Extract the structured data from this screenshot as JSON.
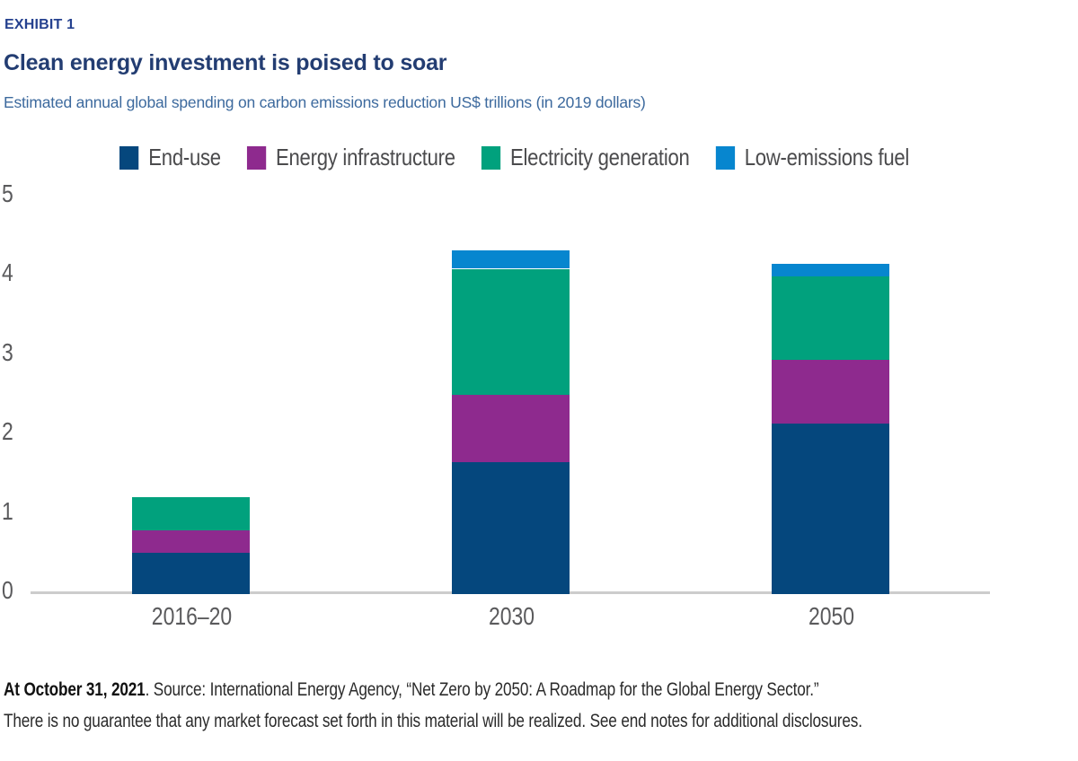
{
  "header": {
    "exhibit_label": "EXHIBIT 1",
    "title": "Clean energy investment is poised to soar",
    "subtitle": "Estimated annual global spending on carbon emissions reduction US$ trillions (in 2019 dollars)"
  },
  "chart_data": {
    "type": "bar",
    "stacked": true,
    "title": "Clean energy investment is poised to soar",
    "subtitle": "Estimated annual global spending on carbon emissions reduction US$ trillions (in 2019 dollars)",
    "categories": [
      "2016–20",
      "2030",
      "2050"
    ],
    "series": [
      {
        "name": "End-use",
        "color": "#05477d",
        "values": [
          0.52,
          1.66,
          2.15
        ]
      },
      {
        "name": "Energy infrastructure",
        "color": "#8e2a8e",
        "values": [
          0.28,
          0.86,
          0.8
        ]
      },
      {
        "name": "Electricity generation",
        "color": "#01a17d",
        "values": [
          0.42,
          1.58,
          1.05
        ]
      },
      {
        "name": "Low-emissions fuel",
        "color": "#0786cf",
        "values": [
          0.0,
          0.23,
          0.16
        ]
      }
    ],
    "totals": [
      1.22,
      4.33,
      4.16
    ],
    "xlabel": "",
    "ylabel": "US$ trillions (in 2019 dollars)",
    "ylim": [
      0,
      5
    ],
    "yticks": [
      0,
      1,
      2,
      3,
      4,
      5
    ],
    "grid": false,
    "legend_position": "top"
  },
  "colors": {
    "exhibit_label": "#25418f",
    "title": "#233d72",
    "subtitle": "#3d6a9e",
    "axis_text": "#5a5a5c",
    "axis_line": "#cccccc",
    "legend_text": "#4b4b4d"
  },
  "footer": {
    "line1_bold": "At October 31, 2021",
    "line1_rest": ". Source: International Energy Agency, “Net Zero by 2050: A Roadmap for the Global Energy Sector.”",
    "line2": "There is no guarantee that any market forecast set forth in this material will be realized. See end notes for additional disclosures."
  }
}
